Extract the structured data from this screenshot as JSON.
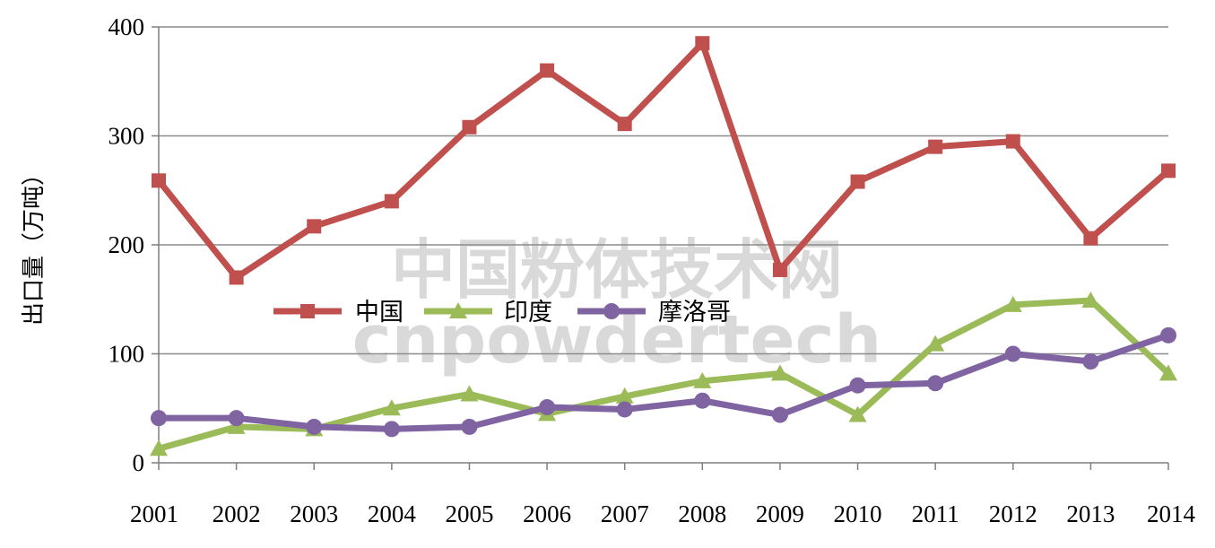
{
  "chart_data": {
    "type": "line",
    "ylabel": "出口量（万吨）",
    "xlabel": "",
    "ylim": [
      0,
      400
    ],
    "yticks": [
      0,
      100,
      200,
      300,
      400
    ],
    "grid": true,
    "legend_position": "center",
    "x": [
      "2001",
      "2002",
      "2003",
      "2004",
      "2005",
      "2006",
      "2007",
      "2008",
      "2009",
      "2010",
      "2011",
      "2012",
      "2013",
      "2014"
    ],
    "series": [
      {
        "name": "中国",
        "color": "#c0504d",
        "marker": "square",
        "values": [
          259,
          170,
          217,
          240,
          308,
          360,
          311,
          385,
          177,
          258,
          290,
          295,
          206,
          268
        ]
      },
      {
        "name": "印度",
        "color": "#9bbb59",
        "marker": "triangle",
        "values": [
          13,
          33,
          31,
          50,
          63,
          45,
          61,
          75,
          82,
          44,
          109,
          145,
          149,
          82
        ]
      },
      {
        "name": "摩洛哥",
        "color": "#8064a2",
        "marker": "circle",
        "values": [
          41,
          41,
          33,
          31,
          33,
          51,
          49,
          57,
          44,
          71,
          73,
          100,
          93,
          117
        ]
      }
    ]
  },
  "watermark": {
    "line1": "中国粉体技术网",
    "line2": "cnpowdertech"
  }
}
